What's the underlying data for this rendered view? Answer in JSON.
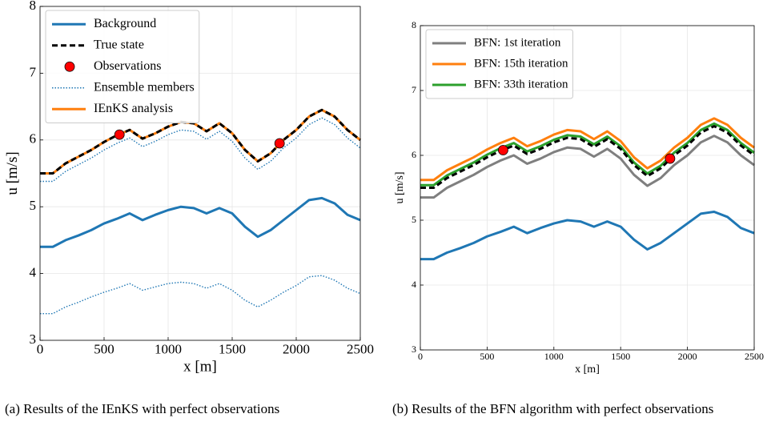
{
  "chart_data": [
    {
      "type": "line",
      "xlabel": "x [m]",
      "ylabel": "u [m/s]",
      "caption": "(a) Results of the IEnKS with perfect observations",
      "x": [
        0,
        100,
        200,
        300,
        400,
        500,
        600,
        700,
        800,
        900,
        1000,
        1100,
        1200,
        1300,
        1400,
        1500,
        1600,
        1700,
        1800,
        1900,
        2000,
        2100,
        2200,
        2300,
        2400,
        2500
      ],
      "series": [
        {
          "name": "Background",
          "color": "#1f77b4",
          "linestyle": "solid",
          "values": [
            4.4,
            4.4,
            4.5,
            4.57,
            4.65,
            4.75,
            4.82,
            4.9,
            4.8,
            4.88,
            4.95,
            5.0,
            4.98,
            4.9,
            4.98,
            4.9,
            4.7,
            4.55,
            4.65,
            4.8,
            4.95,
            5.1,
            5.13,
            5.05,
            4.88,
            4.8
          ]
        },
        {
          "name": "True state",
          "color": "#000000",
          "linestyle": "dashed",
          "values": [
            5.5,
            5.5,
            5.65,
            5.75,
            5.85,
            5.97,
            6.07,
            6.15,
            6.02,
            6.1,
            6.2,
            6.27,
            6.25,
            6.13,
            6.25,
            6.1,
            5.85,
            5.68,
            5.8,
            6.0,
            6.15,
            6.35,
            6.45,
            6.35,
            6.15,
            6.0
          ]
        },
        {
          "name": "Observations",
          "color": "#ff0000",
          "marker": "circle",
          "x": [
            620,
            1870
          ],
          "values": [
            6.08,
            5.95
          ]
        },
        {
          "name": "Ensemble members",
          "color": "#1f77b4",
          "linestyle": "dotted",
          "values": [
            5.38,
            5.38,
            5.53,
            5.63,
            5.73,
            5.85,
            5.95,
            6.03,
            5.9,
            5.98,
            6.08,
            6.15,
            6.13,
            6.01,
            6.13,
            5.98,
            5.73,
            5.56,
            5.68,
            5.88,
            6.03,
            6.23,
            6.33,
            6.23,
            6.03,
            5.88
          ]
        },
        {
          "color": "#1f77b4",
          "linestyle": "dotted",
          "values": [
            3.4,
            3.4,
            3.5,
            3.57,
            3.65,
            3.72,
            3.78,
            3.85,
            3.75,
            3.8,
            3.85,
            3.87,
            3.85,
            3.78,
            3.85,
            3.75,
            3.6,
            3.5,
            3.6,
            3.72,
            3.82,
            3.95,
            3.97,
            3.9,
            3.78,
            3.7
          ]
        },
        {
          "name": "IEnKS analysis",
          "color": "#ff7f0e",
          "linestyle": "solid",
          "values": [
            5.5,
            5.5,
            5.65,
            5.75,
            5.85,
            5.97,
            6.07,
            6.15,
            6.02,
            6.1,
            6.2,
            6.27,
            6.25,
            6.13,
            6.25,
            6.1,
            5.85,
            5.68,
            5.8,
            6.0,
            6.15,
            6.35,
            6.45,
            6.35,
            6.15,
            6.0
          ]
        }
      ],
      "xlim": [
        0,
        2500
      ],
      "ylim": [
        3,
        8
      ],
      "xticks": [
        0,
        500,
        1000,
        1500,
        2000,
        2500
      ],
      "yticks": [
        3,
        4,
        5,
        6,
        7,
        8
      ],
      "grid": true,
      "legend": "upper left"
    },
    {
      "type": "line",
      "xlabel": "x [m]",
      "ylabel": "u [m/s]",
      "caption": "(b) Results of the BFN algorithm with perfect observations",
      "x": [
        0,
        100,
        200,
        300,
        400,
        500,
        600,
        700,
        800,
        900,
        1000,
        1100,
        1200,
        1300,
        1400,
        1500,
        1600,
        1700,
        1800,
        1900,
        2000,
        2100,
        2200,
        2300,
        2400,
        2500
      ],
      "series": [
        {
          "color": "#1f77b4",
          "linestyle": "solid",
          "values": [
            4.4,
            4.4,
            4.5,
            4.57,
            4.65,
            4.75,
            4.82,
            4.9,
            4.8,
            4.88,
            4.95,
            5.0,
            4.98,
            4.9,
            4.98,
            4.9,
            4.7,
            4.55,
            4.65,
            4.8,
            4.95,
            5.1,
            5.13,
            5.05,
            4.88,
            4.8
          ]
        },
        {
          "name": "BFN: 1st iteration",
          "color": "#7f7f7f",
          "linestyle": "solid",
          "values": [
            5.35,
            5.35,
            5.5,
            5.6,
            5.7,
            5.82,
            5.92,
            6.0,
            5.87,
            5.95,
            6.05,
            6.12,
            6.1,
            5.98,
            6.1,
            5.95,
            5.7,
            5.53,
            5.65,
            5.85,
            6.0,
            6.2,
            6.3,
            6.2,
            6.0,
            5.85
          ]
        },
        {
          "name": "BFN: 15th iteration",
          "color": "#ff7f0e",
          "linestyle": "solid",
          "values": [
            5.62,
            5.62,
            5.77,
            5.87,
            5.97,
            6.09,
            6.19,
            6.27,
            6.14,
            6.22,
            6.32,
            6.39,
            6.37,
            6.25,
            6.37,
            6.22,
            5.97,
            5.8,
            5.92,
            6.12,
            6.27,
            6.47,
            6.57,
            6.47,
            6.27,
            6.12
          ]
        },
        {
          "name": "BFN: 33th iteration",
          "color": "#2ca02c",
          "linestyle": "solid",
          "values": [
            5.54,
            5.54,
            5.69,
            5.79,
            5.89,
            6.01,
            6.11,
            6.19,
            6.06,
            6.14,
            6.24,
            6.31,
            6.29,
            6.17,
            6.29,
            6.14,
            5.89,
            5.72,
            5.84,
            6.04,
            6.19,
            6.39,
            6.49,
            6.39,
            6.19,
            6.04
          ]
        },
        {
          "color": "#000000",
          "linestyle": "dashed",
          "values": [
            5.5,
            5.5,
            5.65,
            5.75,
            5.85,
            5.97,
            6.07,
            6.15,
            6.02,
            6.1,
            6.2,
            6.27,
            6.25,
            6.13,
            6.25,
            6.1,
            5.85,
            5.68,
            5.8,
            6.0,
            6.15,
            6.35,
            6.45,
            6.35,
            6.15,
            6.0
          ]
        },
        {
          "color": "#ff0000",
          "marker": "circle",
          "x": [
            620,
            1870
          ],
          "values": [
            6.08,
            5.95
          ]
        }
      ],
      "xlim": [
        0,
        2500
      ],
      "ylim": [
        3,
        8
      ],
      "xticks": [
        0,
        500,
        1000,
        1500,
        2000,
        2500
      ],
      "yticks": [
        3,
        4,
        5,
        6,
        7,
        8
      ],
      "grid": true,
      "legend": "upper left"
    }
  ]
}
